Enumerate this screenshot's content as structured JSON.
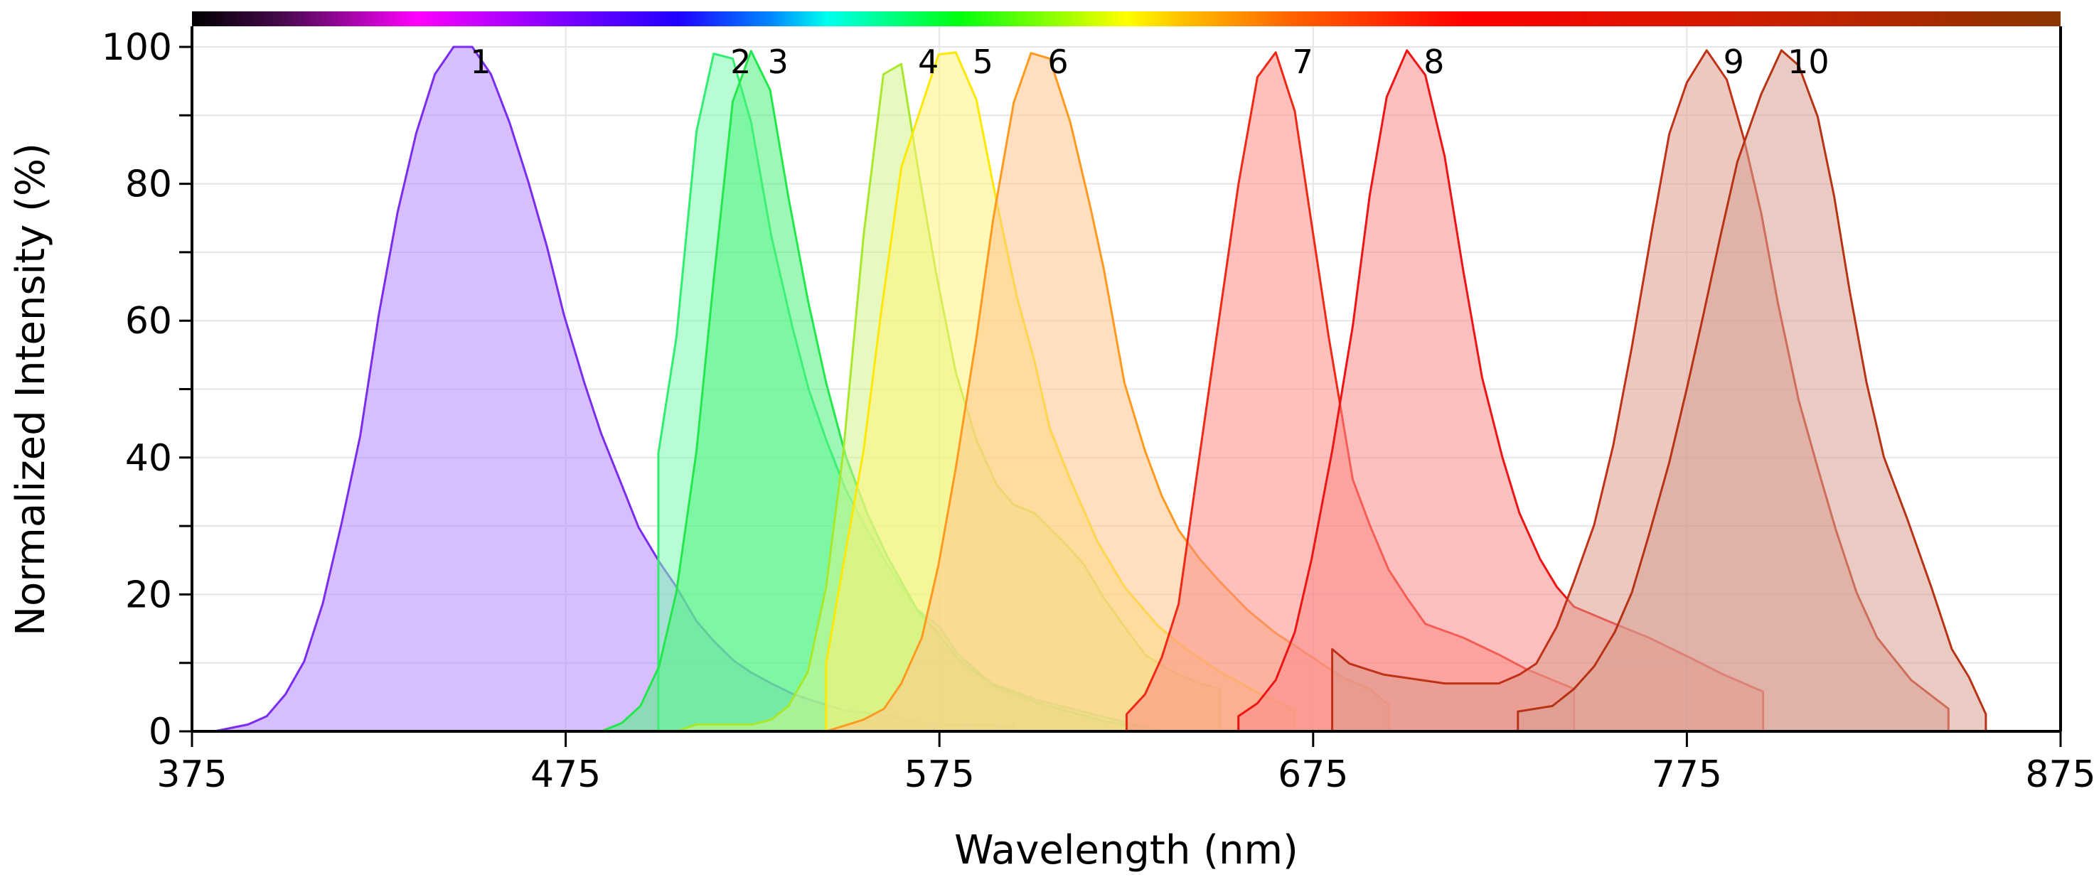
{
  "chart_data": {
    "type": "area",
    "xlabel": "Wavelength (nm)",
    "ylabel": "Normalized Intensity (%)",
    "xlim": [
      375,
      875
    ],
    "ylim": [
      0,
      100
    ],
    "xticks": [
      375,
      475,
      575,
      675,
      775,
      875
    ],
    "yticks": [
      0,
      20,
      40,
      60,
      80,
      100
    ],
    "grid": true,
    "legend": "none; curves labelled by number above each peak",
    "colorbar": "visible spectrum gradient along top edge",
    "series": [
      {
        "name": "1",
        "color": "#7a2cf0",
        "fill": "#b68bff",
        "points": [
          [
            381,
            0
          ],
          [
            390,
            1
          ],
          [
            395,
            2.2
          ],
          [
            400,
            5.4
          ],
          [
            405,
            10.2
          ],
          [
            410,
            18.7
          ],
          [
            415,
            30.3
          ],
          [
            420,
            43.1
          ],
          [
            425,
            60.9
          ],
          [
            430,
            75.8
          ],
          [
            435,
            87.4
          ],
          [
            440,
            96
          ],
          [
            445,
            100
          ],
          [
            450,
            100
          ],
          [
            455,
            96
          ],
          [
            460,
            88.9
          ],
          [
            465,
            80.3
          ],
          [
            470,
            70.8
          ],
          [
            474.5,
            60.9
          ],
          [
            480,
            50.9
          ],
          [
            484.5,
            43.5
          ],
          [
            490,
            36
          ],
          [
            494.5,
            29.8
          ],
          [
            500,
            24.8
          ],
          [
            504.6,
            21.1
          ],
          [
            510,
            16.1
          ],
          [
            514.6,
            13.2
          ],
          [
            520,
            10.3
          ],
          [
            524.6,
            8.6
          ],
          [
            530,
            7
          ],
          [
            535.6,
            5.5
          ],
          [
            541,
            4.5
          ],
          [
            550,
            3
          ],
          [
            555.7,
            2.7
          ],
          [
            565,
            1.9
          ],
          [
            570,
            1.1
          ],
          [
            595,
            0.8
          ],
          [
            595,
            0
          ]
        ]
      },
      {
        "name": "2",
        "color": "#30ee70",
        "fill": "#7dfab0",
        "points": [
          [
            499.8,
            0
          ],
          [
            499.8,
            40.6
          ],
          [
            504.6,
            57.5
          ],
          [
            510,
            87.7
          ],
          [
            514.6,
            99
          ],
          [
            519.7,
            98.3
          ],
          [
            524.6,
            89
          ],
          [
            530,
            72.4
          ],
          [
            535.6,
            59.2
          ],
          [
            540,
            50
          ],
          [
            544.7,
            42.6
          ],
          [
            550,
            35.2
          ],
          [
            555.7,
            29.4
          ],
          [
            561,
            24.4
          ],
          [
            569,
            17.8
          ],
          [
            575,
            15.3
          ],
          [
            580,
            11.2
          ],
          [
            589,
            7
          ],
          [
            601,
            4.6
          ],
          [
            619,
            2.1
          ],
          [
            633.7,
            0.2
          ],
          [
            633.7,
            0
          ]
        ]
      },
      {
        "name": "3",
        "color": "#22e84c",
        "fill": "#4cf27c",
        "points": [
          [
            484.5,
            0
          ],
          [
            490,
            1.2
          ],
          [
            495,
            3.7
          ],
          [
            500,
            9.5
          ],
          [
            504.6,
            20.3
          ],
          [
            510,
            41
          ],
          [
            514.6,
            65.9
          ],
          [
            519.7,
            92
          ],
          [
            524.6,
            99.4
          ],
          [
            529.7,
            93.7
          ],
          [
            534.6,
            78
          ],
          [
            539.8,
            63
          ],
          [
            544.7,
            50.9
          ],
          [
            550,
            40.1
          ],
          [
            555.7,
            31.8
          ],
          [
            561,
            25.6
          ],
          [
            569,
            17.8
          ],
          [
            575,
            14
          ],
          [
            580,
            10.5
          ],
          [
            590,
            6.5
          ],
          [
            601,
            4.2
          ],
          [
            619,
            1.5
          ],
          [
            630,
            0.5
          ],
          [
            630,
            0
          ]
        ]
      },
      {
        "name": "4",
        "color": "#a8e82a",
        "fill": "#d2f58a",
        "points": [
          [
            504.6,
            0
          ],
          [
            510,
            1
          ],
          [
            525,
            1
          ],
          [
            530,
            1.7
          ],
          [
            534.6,
            3.7
          ],
          [
            539.8,
            8.7
          ],
          [
            544.7,
            21.1
          ],
          [
            549.3,
            40.9
          ],
          [
            554.7,
            72.4
          ],
          [
            560,
            96
          ],
          [
            564.8,
            97.5
          ],
          [
            569.3,
            82.2
          ],
          [
            574,
            67.3
          ],
          [
            579.4,
            52.4
          ],
          [
            584.9,
            42.6
          ],
          [
            590.3,
            36
          ],
          [
            594.9,
            33.1
          ],
          [
            600.4,
            31.9
          ],
          [
            608.2,
            27.7
          ],
          [
            613.6,
            24.4
          ],
          [
            619,
            19.5
          ],
          [
            624.5,
            15.3
          ],
          [
            630,
            11.2
          ],
          [
            637.3,
            8.7
          ],
          [
            644.6,
            7
          ],
          [
            650,
            6.2
          ],
          [
            650,
            0
          ]
        ]
      },
      {
        "name": "5",
        "color": "#ffe800",
        "fill": "#fff27a",
        "points": [
          [
            544.7,
            0
          ],
          [
            544.7,
            9.9
          ],
          [
            549.3,
            24.4
          ],
          [
            554.7,
            41
          ],
          [
            559.3,
            60.8
          ],
          [
            564.8,
            82.4
          ],
          [
            569.3,
            89.8
          ],
          [
            574.8,
            98.9
          ],
          [
            579.4,
            99.2
          ],
          [
            584.9,
            92.3
          ],
          [
            590.3,
            77.4
          ],
          [
            595.8,
            63.3
          ],
          [
            600.4,
            54.2
          ],
          [
            604.5,
            44.3
          ],
          [
            610,
            36.8
          ],
          [
            617.3,
            27.7
          ],
          [
            624.5,
            21.1
          ],
          [
            633.7,
            15.3
          ],
          [
            641,
            12
          ],
          [
            650,
            8.7
          ],
          [
            661,
            5.4
          ],
          [
            670,
            3.1
          ],
          [
            670,
            0
          ]
        ]
      },
      {
        "name": "6",
        "color": "#ff9a1e",
        "fill": "#ffc58a",
        "points": [
          [
            544.7,
            0
          ],
          [
            554.7,
            1.7
          ],
          [
            560.2,
            3.3
          ],
          [
            564.8,
            7
          ],
          [
            570.3,
            13.7
          ],
          [
            574.8,
            24.4
          ],
          [
            579.4,
            38.5
          ],
          [
            584.9,
            57.5
          ],
          [
            589.4,
            74.9
          ],
          [
            594.9,
            91.9
          ],
          [
            599.5,
            99.1
          ],
          [
            604.5,
            98.3
          ],
          [
            610,
            89
          ],
          [
            615.4,
            76.6
          ],
          [
            619,
            67.5
          ],
          [
            624.5,
            50.9
          ],
          [
            630,
            41
          ],
          [
            634.5,
            34.4
          ],
          [
            639,
            29.4
          ],
          [
            644.6,
            25.2
          ],
          [
            650,
            21.9
          ],
          [
            657.3,
            17.8
          ],
          [
            664.6,
            14.5
          ],
          [
            673.7,
            11.2
          ],
          [
            682.8,
            7.9
          ],
          [
            690,
            6.2
          ],
          [
            695.2,
            3.9
          ],
          [
            695.2,
            0
          ]
        ]
      },
      {
        "name": "7",
        "color": "#f02814",
        "fill": "#fb8c86",
        "points": [
          [
            625.1,
            0
          ],
          [
            625.1,
            2.5
          ],
          [
            630,
            5.4
          ],
          [
            634.5,
            10.8
          ],
          [
            639,
            18.6
          ],
          [
            643.7,
            36.8
          ],
          [
            649.1,
            57.5
          ],
          [
            655,
            79.9
          ],
          [
            660.1,
            95.6
          ],
          [
            665,
            99.2
          ],
          [
            670.1,
            90.6
          ],
          [
            674.6,
            74.1
          ],
          [
            679.2,
            57.5
          ],
          [
            685.6,
            36.8
          ],
          [
            690.1,
            30.2
          ],
          [
            695.2,
            23.6
          ],
          [
            700.1,
            19.5
          ],
          [
            705,
            15.7
          ],
          [
            715.1,
            13.7
          ],
          [
            724.7,
            11.2
          ],
          [
            732,
            9.1
          ],
          [
            744.8,
            6.2
          ],
          [
            744.8,
            0
          ]
        ]
      },
      {
        "name": "8",
        "color": "#ee1414",
        "fill": "#f88a8a",
        "points": [
          [
            655,
            0
          ],
          [
            655,
            2.2
          ],
          [
            660.1,
            4.1
          ],
          [
            665,
            7.5
          ],
          [
            670.1,
            14.5
          ],
          [
            674.6,
            25.2
          ],
          [
            680.1,
            41
          ],
          [
            685.6,
            59.2
          ],
          [
            690.1,
            78.2
          ],
          [
            694.7,
            92.7
          ],
          [
            700.1,
            99.5
          ],
          [
            705,
            95.9
          ],
          [
            710.2,
            84
          ],
          [
            715.1,
            67.5
          ],
          [
            720.2,
            51.7
          ],
          [
            725.6,
            40.1
          ],
          [
            730.2,
            31.9
          ],
          [
            735.7,
            25.2
          ],
          [
            740.2,
            21.1
          ],
          [
            744.8,
            18.2
          ],
          [
            755.7,
            15.7
          ],
          [
            764.8,
            13.7
          ],
          [
            775.7,
            10.8
          ],
          [
            784.8,
            8.3
          ],
          [
            795.4,
            5.8
          ],
          [
            795.4,
            0
          ]
        ]
      },
      {
        "name": "9",
        "color": "#c03216",
        "fill": "#dd9a8c",
        "points": [
          [
            680.1,
            0
          ],
          [
            680.1,
            12
          ],
          [
            684.7,
            9.9
          ],
          [
            693.8,
            8.3
          ],
          [
            710.2,
            7
          ],
          [
            724.7,
            7
          ],
          [
            730.2,
            8.3
          ],
          [
            734.7,
            9.9
          ],
          [
            740.2,
            15.3
          ],
          [
            744.8,
            21.9
          ],
          [
            750.2,
            30.2
          ],
          [
            755.3,
            41.8
          ],
          [
            760.2,
            55.9
          ],
          [
            765.7,
            73.3
          ],
          [
            770.3,
            87.3
          ],
          [
            775,
            94.8
          ],
          [
            780.3,
            99.5
          ],
          [
            785.7,
            95.2
          ],
          [
            790.3,
            86.5
          ],
          [
            794.9,
            75.7
          ],
          [
            799.4,
            62.5
          ],
          [
            804.9,
            48.4
          ],
          [
            810,
            38.5
          ],
          [
            814.9,
            29.4
          ],
          [
            820.4,
            20.3
          ],
          [
            825.9,
            13.7
          ],
          [
            835,
            7.5
          ],
          [
            845,
            3.3
          ],
          [
            845,
            0
          ]
        ]
      },
      {
        "name": "10",
        "color": "#b83214",
        "fill": "#d9a094",
        "points": [
          [
            729.8,
            0
          ],
          [
            729.8,
            2.9
          ],
          [
            739,
            3.7
          ],
          [
            744.8,
            6.2
          ],
          [
            750.2,
            9.5
          ],
          [
            755.7,
            14.5
          ],
          [
            760.3,
            20.3
          ],
          [
            764.8,
            28.6
          ],
          [
            770.3,
            39.3
          ],
          [
            775,
            50.1
          ],
          [
            779.4,
            60.8
          ],
          [
            784,
            72.4
          ],
          [
            788.5,
            83.2
          ],
          [
            794.9,
            93.1
          ],
          [
            800.3,
            99.5
          ],
          [
            804.9,
            97.3
          ],
          [
            810,
            89.8
          ],
          [
            814.4,
            78.2
          ],
          [
            818.6,
            64.2
          ],
          [
            823.1,
            50.9
          ],
          [
            827.7,
            40.1
          ],
          [
            834,
            31
          ],
          [
            840.4,
            21.1
          ],
          [
            845.9,
            12
          ],
          [
            850.5,
            7.9
          ],
          [
            855,
            2.5
          ],
          [
            855,
            0
          ]
        ]
      }
    ]
  }
}
